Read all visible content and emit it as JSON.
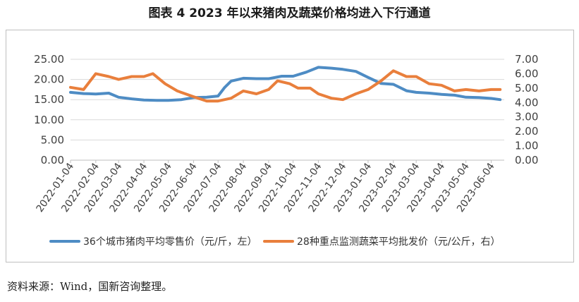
{
  "chart_data": {
    "type": "line",
    "title": "图表 4 2023 年以来猪肉及蔬菜价格均进入下行通道",
    "x_tick_labels": [
      "2022-01-04",
      "2022-02-04",
      "2022-03-04",
      "2022-04-04",
      "2022-05-04",
      "2022-06-04",
      "2022-07-04",
      "2022-08-04",
      "2022-09-04",
      "2022-10-04",
      "2022-11-04",
      "2022-12-04",
      "2023-01-04",
      "2023-02-04",
      "2023-03-04",
      "2023-04-04",
      "2023-05-04",
      "2023-06-04"
    ],
    "y_left": {
      "ticks": [
        "25.00",
        "20.00",
        "15.00",
        "10.00",
        "5.00",
        "0.00"
      ],
      "range": [
        0,
        25
      ]
    },
    "y_right": {
      "ticks": [
        "7.00",
        "6.00",
        "5.00",
        "4.00",
        "3.00",
        "2.00",
        "1.00",
        "0.00"
      ],
      "range": [
        0,
        7
      ]
    },
    "legend_position": "bottom",
    "series": [
      {
        "name": "36个城市猪肉平均零售价（元/斤，左）",
        "axis": "left",
        "color": "#4e8cc4",
        "x": [
          "2022-01-04",
          "2022-01-20",
          "2022-02-04",
          "2022-02-20",
          "2022-03-04",
          "2022-03-20",
          "2022-04-04",
          "2022-04-20",
          "2022-05-04",
          "2022-05-20",
          "2022-06-04",
          "2022-06-20",
          "2022-07-04",
          "2022-07-12",
          "2022-07-20",
          "2022-08-04",
          "2022-08-20",
          "2022-09-04",
          "2022-09-20",
          "2022-10-04",
          "2022-10-20",
          "2022-11-04",
          "2022-11-20",
          "2022-12-04",
          "2022-12-20",
          "2023-01-04",
          "2023-01-20",
          "2023-02-04",
          "2023-02-20",
          "2023-03-04",
          "2023-03-20",
          "2023-04-04",
          "2023-04-20",
          "2023-05-04",
          "2023-05-20",
          "2023-06-04",
          "2023-06-15"
        ],
        "values": [
          16.8,
          16.5,
          16.4,
          16.6,
          15.6,
          15.2,
          14.9,
          14.8,
          14.8,
          15.0,
          15.5,
          15.6,
          15.9,
          18.0,
          19.6,
          20.3,
          20.2,
          20.2,
          20.8,
          20.8,
          21.8,
          23.0,
          22.8,
          22.5,
          22.0,
          20.5,
          19.0,
          18.8,
          17.2,
          16.8,
          16.6,
          16.3,
          16.1,
          15.6,
          15.5,
          15.3,
          15.0
        ]
      },
      {
        "name": "28种重点监测蔬菜平均批发价（元/公斤，右）",
        "axis": "right",
        "color": "#e97f3c",
        "x": [
          "2022-01-04",
          "2022-01-20",
          "2022-02-04",
          "2022-02-20",
          "2022-03-04",
          "2022-03-20",
          "2022-04-04",
          "2022-04-15",
          "2022-04-30",
          "2022-05-15",
          "2022-06-04",
          "2022-06-20",
          "2022-07-04",
          "2022-07-20",
          "2022-08-04",
          "2022-08-20",
          "2022-09-04",
          "2022-09-15",
          "2022-09-30",
          "2022-10-10",
          "2022-10-25",
          "2022-11-04",
          "2022-11-20",
          "2022-12-04",
          "2022-12-20",
          "2023-01-04",
          "2023-01-20",
          "2023-02-04",
          "2023-02-20",
          "2023-03-04",
          "2023-03-20",
          "2023-04-04",
          "2023-04-20",
          "2023-05-04",
          "2023-05-20",
          "2023-06-04",
          "2023-06-15"
        ],
        "values": [
          5.05,
          4.9,
          6.0,
          5.8,
          5.6,
          5.8,
          5.8,
          6.0,
          5.3,
          4.8,
          4.4,
          4.1,
          4.1,
          4.3,
          4.8,
          4.6,
          4.9,
          5.5,
          5.3,
          5.0,
          5.0,
          4.6,
          4.3,
          4.2,
          4.6,
          4.9,
          5.5,
          6.2,
          5.8,
          5.8,
          5.3,
          5.2,
          4.8,
          4.9,
          4.8,
          4.9,
          4.9
        ]
      }
    ]
  },
  "source_note": "资料来源：Wind，国新咨询整理。"
}
